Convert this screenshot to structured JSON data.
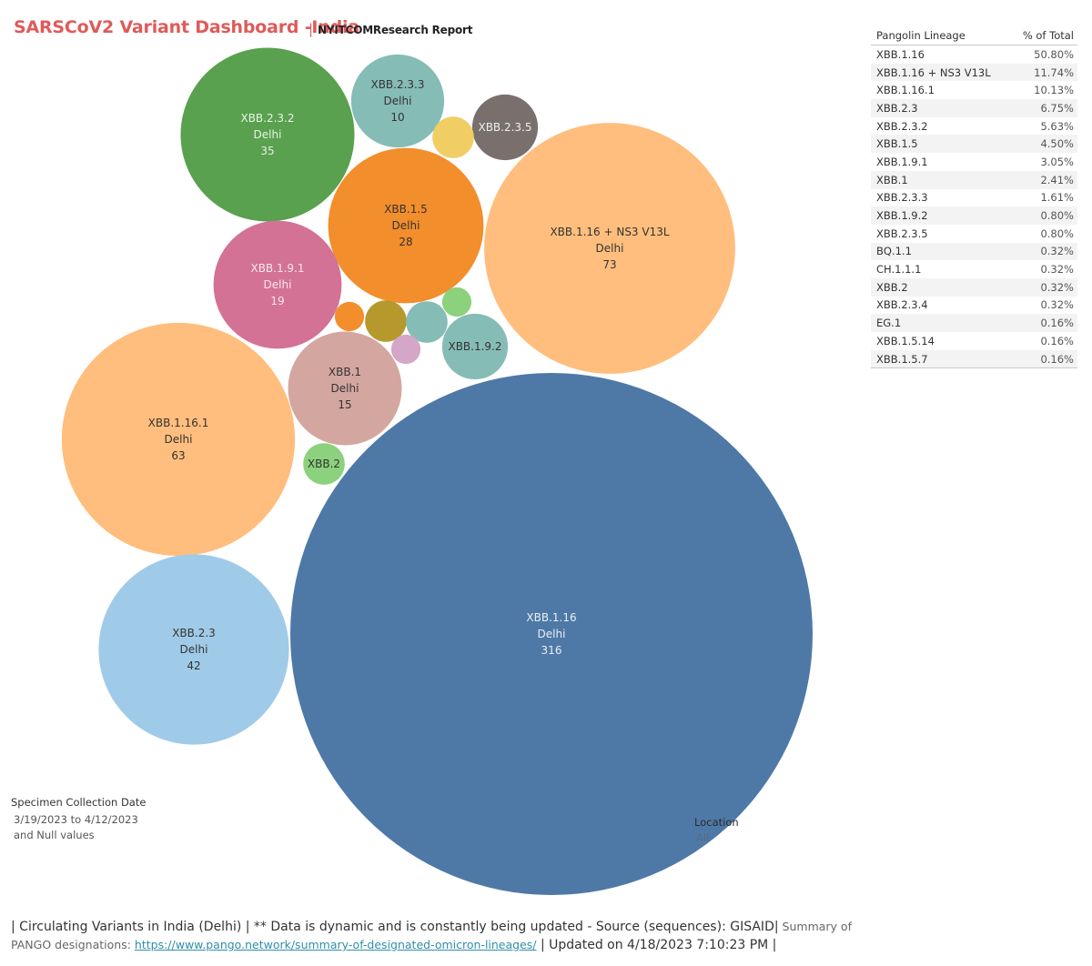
{
  "header": {
    "title": "SARSCoV2 Variant Dashboard -India",
    "separator": "|",
    "subtitle": "NYITCOMResearch Report"
  },
  "chart_data": {
    "type": "bubble",
    "location": "Delhi",
    "bubbles": [
      {
        "lineage": "XBB.1.16",
        "location": "Delhi",
        "count": 316,
        "color": "#4e79a7",
        "text": "#e9eef5"
      },
      {
        "lineage": "XBB.1.16 + NS3 V13L",
        "location": "Delhi",
        "count": 73,
        "color": "#ffbe7d",
        "text": "#333333"
      },
      {
        "lineage": "XBB.1.16.1",
        "location": "Delhi",
        "count": 63,
        "color": "#ffbe7d",
        "text": "#333333"
      },
      {
        "lineage": "XBB.2.3",
        "location": "Delhi",
        "count": 42,
        "color": "#a0cbe8",
        "text": "#333333"
      },
      {
        "lineage": "XBB.2.3.2",
        "location": "Delhi",
        "count": 35,
        "color": "#59a14f",
        "text": "#e8f3e5"
      },
      {
        "lineage": "XBB.1.5",
        "location": "Delhi",
        "count": 28,
        "color": "#f28e2b",
        "text": "#333333"
      },
      {
        "lineage": "XBB.1.9.1",
        "location": "Delhi",
        "count": 19,
        "color": "#d37295",
        "text": "#f7e6ed"
      },
      {
        "lineage": "XBB.1",
        "location": "Delhi",
        "count": 15,
        "color": "#d4a6a0",
        "text": "#333333"
      },
      {
        "lineage": "XBB.2.3.3",
        "location": "Delhi",
        "count": 10,
        "color": "#86bcb6",
        "text": "#333333"
      },
      {
        "lineage": "XBB.1.9.2",
        "location": "",
        "count": 5,
        "color": "#86bcb6",
        "text": "#333333"
      },
      {
        "lineage": "XBB.2.3.5",
        "location": "",
        "count": 5,
        "color": "#79706e",
        "text": "#eeeeee"
      },
      {
        "lineage": "",
        "location": "",
        "count": 2,
        "color": "#b6992d",
        "text": "#333333"
      },
      {
        "lineage": "",
        "location": "",
        "count": 2,
        "color": "#86bcb6",
        "text": "#333333"
      },
      {
        "lineage": "XBB.2",
        "location": "",
        "count": 2,
        "color": "#8cd17d",
        "text": "#333333"
      },
      {
        "lineage": "",
        "location": "",
        "count": 2,
        "color": "#f1ce63",
        "text": "#333333"
      },
      {
        "lineage": "",
        "location": "",
        "count": 1,
        "color": "#f28e2b",
        "text": "#333333"
      },
      {
        "lineage": "",
        "location": "",
        "count": 1,
        "color": "#8cd17d",
        "text": "#333333"
      },
      {
        "lineage": "",
        "location": "",
        "count": 1,
        "color": "#d4a6c8",
        "text": "#333333"
      }
    ]
  },
  "table": {
    "headers": [
      "Pangolin Lineage",
      "% of Total"
    ],
    "rows": [
      [
        "XBB.1.16",
        "50.80%"
      ],
      [
        "XBB.1.16 + NS3 V13L",
        "11.74%"
      ],
      [
        "XBB.1.16.1",
        "10.13%"
      ],
      [
        "XBB.2.3",
        "6.75%"
      ],
      [
        "XBB.2.3.2",
        "5.63%"
      ],
      [
        "XBB.1.5",
        "4.50%"
      ],
      [
        "XBB.1.9.1",
        "3.05%"
      ],
      [
        "XBB.1",
        "2.41%"
      ],
      [
        "XBB.2.3.3",
        "1.61%"
      ],
      [
        "XBB.1.9.2",
        "0.80%"
      ],
      [
        "XBB.2.3.5",
        "0.80%"
      ],
      [
        "BQ.1.1",
        "0.32%"
      ],
      [
        "CH.1.1.1",
        "0.32%"
      ],
      [
        "XBB.2",
        "0.32%"
      ],
      [
        "XBB.2.3.4",
        "0.32%"
      ],
      [
        "EG.1",
        "0.16%"
      ],
      [
        "XBB.1.5.14",
        "0.16%"
      ],
      [
        "XBB.1.5.7",
        "0.16%"
      ]
    ]
  },
  "filters": {
    "title": "Specimen Collection Date",
    "range": "3/19/2023 to 4/12/2023",
    "null_values": "and Null values"
  },
  "location_filter": {
    "label": "Location",
    "value": "All"
  },
  "footer": {
    "part1": "| Circulating Variants in India (Delhi)  |  ** Data is dynamic and is constantly being updated - Source (sequences): GISAID|",
    "part2": " Summary of PANGO designations: ",
    "link": "https://www.pango.network/summary-of-designated-omicron-lineages/",
    "part3": " | Updated on 4/18/2023 7:10:23 PM |"
  }
}
